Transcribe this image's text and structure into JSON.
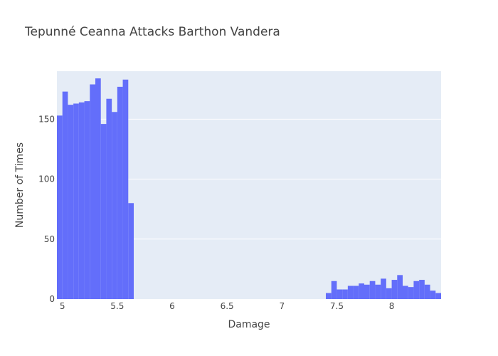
{
  "chart_data": {
    "type": "bar",
    "title": "Tepunné Ceanna Attacks Barthon Vandera",
    "xlabel": "Damage",
    "ylabel": "Number of Times",
    "xlim": [
      4.95,
      8.45
    ],
    "ylim": [
      0,
      190
    ],
    "x_ticks": [
      {
        "value": 5,
        "label": "5"
      },
      {
        "value": 5.5,
        "label": "5.5"
      },
      {
        "value": 6,
        "label": "6"
      },
      {
        "value": 6.5,
        "label": "6.5"
      },
      {
        "value": 7,
        "label": "7"
      },
      {
        "value": 7.5,
        "label": "7.5"
      },
      {
        "value": 8,
        "label": "8"
      }
    ],
    "y_ticks": [
      {
        "value": 0,
        "label": "0"
      },
      {
        "value": 50,
        "label": "50"
      },
      {
        "value": 100,
        "label": "100"
      },
      {
        "value": 150,
        "label": "150"
      }
    ],
    "grid": true,
    "bar_color": "#636efa",
    "plot_bg": "#e5ecf6",
    "bins": [
      {
        "x0": 4.95,
        "x1": 5.0,
        "count": 153
      },
      {
        "x0": 5.0,
        "x1": 5.05,
        "count": 173
      },
      {
        "x0": 5.05,
        "x1": 5.1,
        "count": 162
      },
      {
        "x0": 5.1,
        "x1": 5.15,
        "count": 163
      },
      {
        "x0": 5.15,
        "x1": 5.2,
        "count": 164
      },
      {
        "x0": 5.2,
        "x1": 5.25,
        "count": 165
      },
      {
        "x0": 5.25,
        "x1": 5.3,
        "count": 179
      },
      {
        "x0": 5.3,
        "x1": 5.35,
        "count": 184
      },
      {
        "x0": 5.35,
        "x1": 5.4,
        "count": 146
      },
      {
        "x0": 5.4,
        "x1": 5.45,
        "count": 167
      },
      {
        "x0": 5.45,
        "x1": 5.5,
        "count": 156
      },
      {
        "x0": 5.5,
        "x1": 5.55,
        "count": 177
      },
      {
        "x0": 5.55,
        "x1": 5.6,
        "count": 183
      },
      {
        "x0": 5.6,
        "x1": 5.65,
        "count": 80
      },
      {
        "x0": 7.4,
        "x1": 7.45,
        "count": 5
      },
      {
        "x0": 7.45,
        "x1": 7.5,
        "count": 15
      },
      {
        "x0": 7.5,
        "x1": 7.55,
        "count": 8
      },
      {
        "x0": 7.55,
        "x1": 7.6,
        "count": 8
      },
      {
        "x0": 7.6,
        "x1": 7.65,
        "count": 11
      },
      {
        "x0": 7.65,
        "x1": 7.7,
        "count": 11
      },
      {
        "x0": 7.7,
        "x1": 7.75,
        "count": 13
      },
      {
        "x0": 7.75,
        "x1": 7.8,
        "count": 12
      },
      {
        "x0": 7.8,
        "x1": 7.85,
        "count": 15
      },
      {
        "x0": 7.85,
        "x1": 7.9,
        "count": 12
      },
      {
        "x0": 7.9,
        "x1": 7.95,
        "count": 17
      },
      {
        "x0": 7.95,
        "x1": 8.0,
        "count": 9
      },
      {
        "x0": 8.0,
        "x1": 8.05,
        "count": 16
      },
      {
        "x0": 8.05,
        "x1": 8.1,
        "count": 20
      },
      {
        "x0": 8.1,
        "x1": 8.15,
        "count": 11
      },
      {
        "x0": 8.15,
        "x1": 8.2,
        "count": 10
      },
      {
        "x0": 8.2,
        "x1": 8.25,
        "count": 15
      },
      {
        "x0": 8.25,
        "x1": 8.3,
        "count": 16
      },
      {
        "x0": 8.3,
        "x1": 8.35,
        "count": 12
      },
      {
        "x0": 8.35,
        "x1": 8.4,
        "count": 7
      },
      {
        "x0": 8.4,
        "x1": 8.45,
        "count": 5
      }
    ]
  }
}
